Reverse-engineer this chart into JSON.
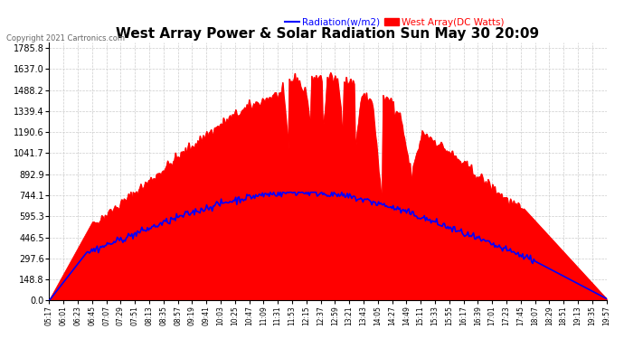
{
  "title": "West Array Power & Solar Radiation Sun May 30 20:09",
  "copyright": "Copyright 2021 Cartronics.com",
  "legend_radiation": "Radiation(w/m2)",
  "legend_west": "West Array(DC Watts)",
  "ymin": 0.0,
  "ymax": 1785.8,
  "yticks": [
    0.0,
    148.8,
    297.6,
    446.5,
    595.3,
    744.1,
    892.9,
    1041.7,
    1190.6,
    1339.4,
    1488.2,
    1637.0,
    1785.8
  ],
  "background_color": "#ffffff",
  "plot_bg_color": "#ffffff",
  "red_fill_color": "#ff0000",
  "blue_line_color": "#0000ff",
  "grid_color": "#cccccc",
  "title_color": "#000000",
  "xtick_labels": [
    "05:17",
    "06:01",
    "06:23",
    "06:45",
    "07:07",
    "07:29",
    "07:51",
    "08:13",
    "08:35",
    "08:57",
    "09:19",
    "09:41",
    "10:03",
    "10:25",
    "10:47",
    "11:09",
    "11:31",
    "11:53",
    "12:15",
    "12:37",
    "12:59",
    "13:21",
    "13:43",
    "14:05",
    "14:27",
    "14:49",
    "15:11",
    "15:33",
    "15:55",
    "16:17",
    "16:39",
    "17:01",
    "17:23",
    "17:45",
    "18:07",
    "18:29",
    "18:51",
    "19:13",
    "19:35",
    "19:57"
  ]
}
